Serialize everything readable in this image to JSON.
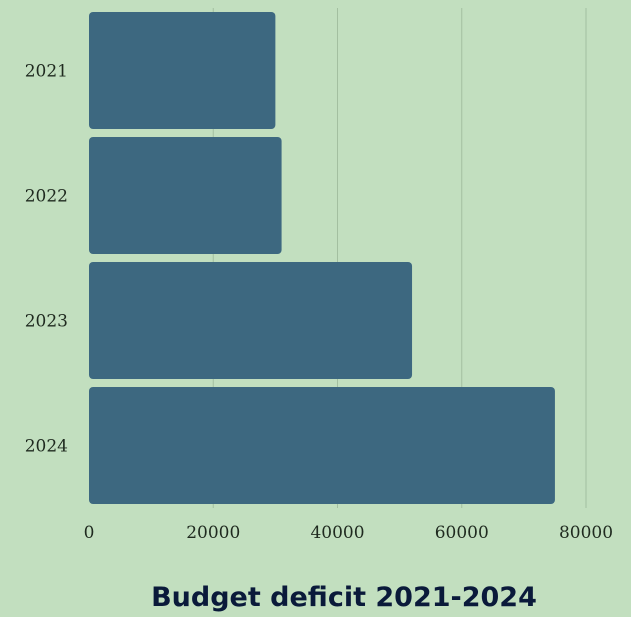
{
  "chart_data": {
    "type": "bar",
    "orientation": "horizontal",
    "title": "Budget deficit 2021-2024",
    "xlabel": "",
    "ylabel": "",
    "categories": [
      "2021",
      "2022",
      "2023",
      "2024"
    ],
    "values": [
      30000,
      31000,
      52000,
      75000
    ],
    "xlim": [
      0,
      80000
    ],
    "xticks": [
      "0",
      "20000",
      "40000",
      "60000",
      "80000"
    ],
    "grid": true,
    "legend": "none"
  },
  "colors": {
    "background": "#c2dfbf",
    "bar": "#3d6880",
    "grid": "#a3bfa0",
    "title": "#0a1a3a"
  }
}
